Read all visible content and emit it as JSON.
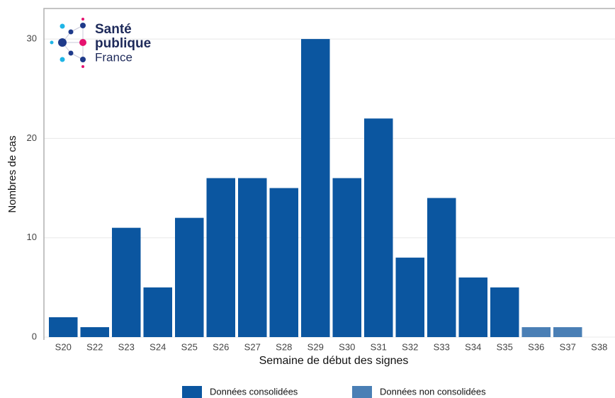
{
  "logo": {
    "line1": "Santé",
    "line2": "publique",
    "line3": "France"
  },
  "chart_data": {
    "type": "bar",
    "stacked": true,
    "x_label": "Semaine de début des signes",
    "y_label": "Nombres de cas",
    "categories": [
      "S20",
      "S22",
      "S23",
      "S24",
      "S25",
      "S26",
      "S27",
      "S28",
      "S29",
      "S30",
      "S31",
      "S32",
      "S33",
      "S34",
      "S35",
      "S36",
      "S37",
      "S38"
    ],
    "series": [
      {
        "name": "Données consolidées",
        "color": "#0b56a0",
        "values": [
          2,
          1,
          11,
          5,
          12,
          16,
          16,
          15,
          30,
          16,
          22,
          8,
          14,
          6,
          5,
          null,
          null,
          null
        ]
      },
      {
        "name": "Données non consolidées",
        "color": "#4a7fb5",
        "values": [
          null,
          null,
          null,
          null,
          null,
          null,
          null,
          null,
          null,
          null,
          null,
          null,
          null,
          null,
          null,
          1,
          1,
          null
        ]
      }
    ],
    "ylim": [
      0,
      33
    ],
    "yticks": [
      0,
      10,
      20,
      30
    ],
    "grid": true,
    "legend": "bottom"
  }
}
